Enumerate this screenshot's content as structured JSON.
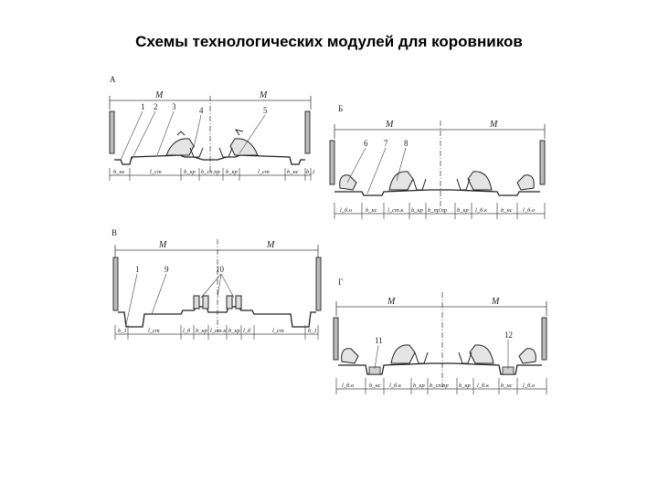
{
  "title": "Схемы технологических модулей для коровников",
  "panels": {
    "a": {
      "letter": "А",
      "dims_top": [
        "М",
        "М"
      ],
      "callouts": [
        "1",
        "2",
        "3",
        "4",
        "5"
      ],
      "dims_bottom": [
        "b_нс",
        "l_ст",
        "b_кр",
        "b_сп.пр",
        "b_кр",
        "l_ст",
        "b_нс",
        "b_1"
      ]
    },
    "b": {
      "letter": "Б",
      "dims_top": [
        "М",
        "М"
      ],
      "callouts": [
        "6",
        "7",
        "8"
      ],
      "dims_bottom": [
        "l_б.о",
        "b_нс",
        "l_ст.к",
        "b_кр",
        "b_пр.пр",
        "b_кр",
        "l_б.к",
        "b_нс",
        "l_б.о"
      ]
    },
    "c": {
      "letter": "В",
      "dims_top": [
        "М",
        "М"
      ],
      "callouts": [
        "1",
        "9",
        "10"
      ],
      "dims_bottom": [
        "b_1",
        "l_ст",
        "l_б",
        "b_кр",
        "l_ст.к",
        "b_кр",
        "l_б",
        "l_ст",
        "b_1"
      ]
    },
    "d": {
      "letter": "Г",
      "dims_top": [
        "М",
        "М"
      ],
      "callouts": [
        "11",
        "12"
      ],
      "dims_bottom": [
        "l_б.о",
        "b_нс",
        "l_б.к",
        "b_кр",
        "b_сп.пр",
        "b_кр",
        "l_б.к",
        "b_нс",
        "l_б.о"
      ]
    }
  }
}
